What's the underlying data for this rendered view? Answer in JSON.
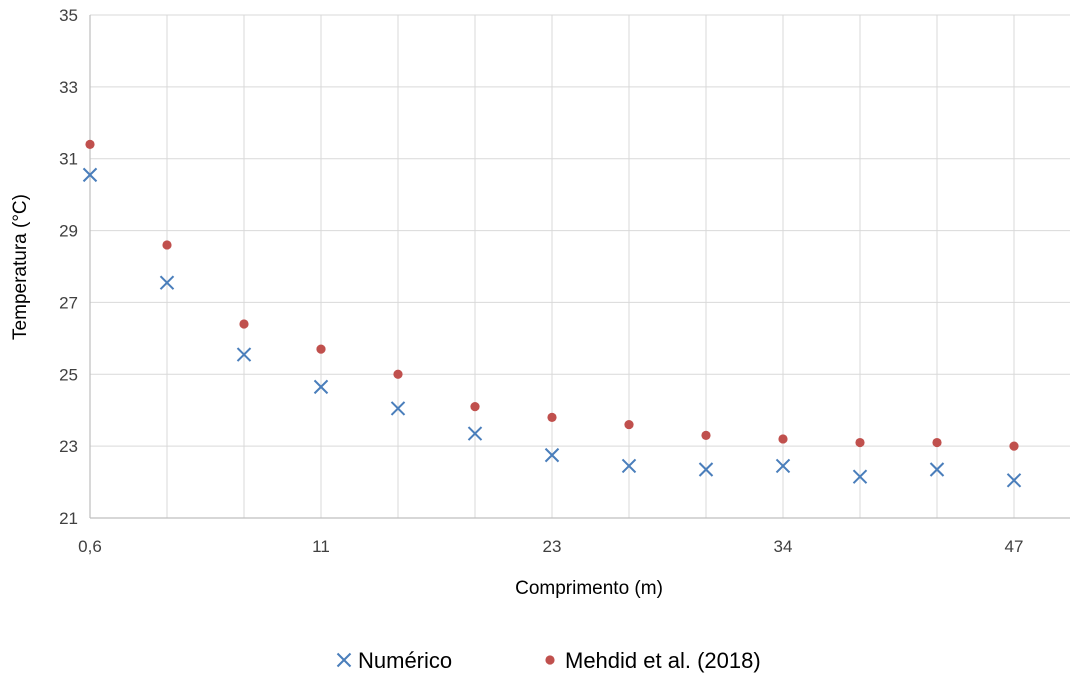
{
  "chart_data": {
    "type": "scatter",
    "title": "",
    "xlabel": "Comprimento (m)",
    "ylabel": "Temperatura (°C)",
    "x_tick_labels": [
      "0,6",
      "11",
      "23",
      "34",
      "47"
    ],
    "x_categories": [
      "0,6",
      "",
      "",
      "11",
      "",
      "",
      "23",
      "",
      "",
      "34",
      "",
      "",
      "47"
    ],
    "y_ticks": [
      21,
      23,
      25,
      27,
      29,
      31,
      33,
      35
    ],
    "ylim": [
      21,
      35
    ],
    "grid": true,
    "legend_position": "bottom",
    "series": [
      {
        "name": "Numérico",
        "marker": "x",
        "color": "#4a7ebb",
        "values": [
          30.55,
          27.55,
          25.55,
          24.65,
          24.05,
          23.35,
          22.75,
          22.45,
          22.35,
          22.45,
          22.15,
          22.35,
          22.05
        ]
      },
      {
        "name": "Mehdid et al. (2018)",
        "marker": "circle",
        "color": "#c0504d",
        "values": [
          31.4,
          28.6,
          26.4,
          25.7,
          25.0,
          24.1,
          23.8,
          23.6,
          23.3,
          23.2,
          23.1,
          23.1,
          23.0
        ]
      }
    ]
  }
}
